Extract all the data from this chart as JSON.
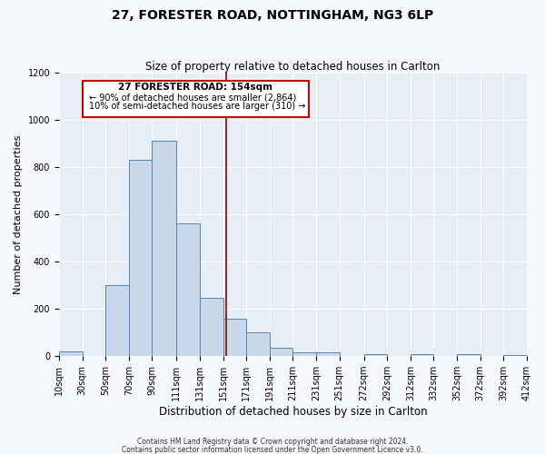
{
  "title": "27, FORESTER ROAD, NOTTINGHAM, NG3 6LP",
  "subtitle": "Size of property relative to detached houses in Carlton",
  "xlabel": "Distribution of detached houses by size in Carlton",
  "ylabel": "Number of detached properties",
  "bar_color": "#c8d8e8",
  "bar_edge_color": "#5588aa",
  "background_color": "#e8eef5",
  "grid_color": "#ffffff",
  "fig_background": "#f5f8fc",
  "red_line_x": 154,
  "annotation_line1": "27 FORESTER ROAD: 154sqm",
  "annotation_line2": "← 90% of detached houses are smaller (2,864)",
  "annotation_line3": "10% of semi-detached houses are larger (310) →",
  "bin_edges": [
    10,
    30,
    50,
    70,
    90,
    111,
    131,
    151,
    171,
    191,
    211,
    231,
    251,
    272,
    292,
    312,
    332,
    352,
    372,
    392,
    412
  ],
  "bin_counts": [
    20,
    0,
    300,
    830,
    910,
    560,
    245,
    160,
    100,
    35,
    15,
    15,
    0,
    10,
    0,
    10,
    0,
    10,
    0,
    5
  ],
  "ylim": [
    0,
    1200
  ],
  "yticks": [
    0,
    200,
    400,
    600,
    800,
    1000,
    1200
  ],
  "footnote1": "Contains HM Land Registry data © Crown copyright and database right 2024.",
  "footnote2": "Contains public sector information licensed under the Open Government Licence v3.0."
}
